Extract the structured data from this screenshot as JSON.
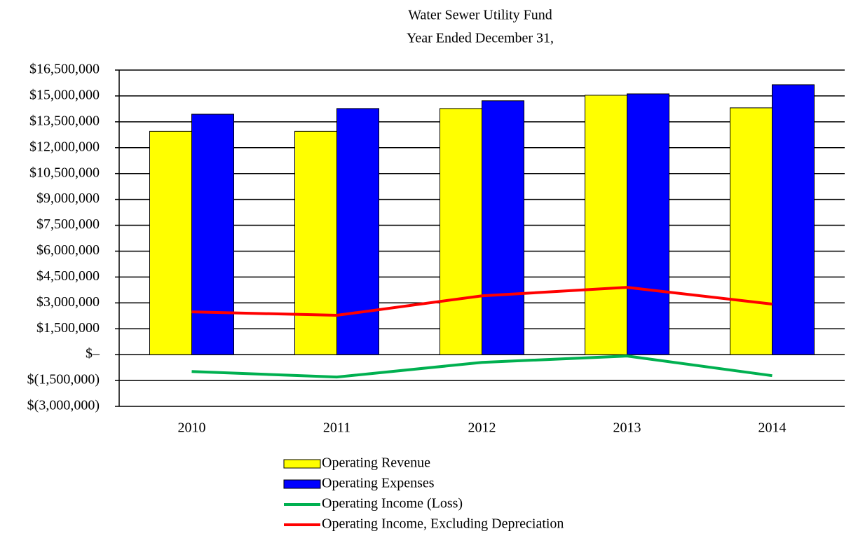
{
  "chart_data": {
    "type": "bar",
    "title": "Water Sewer Utility Fund",
    "subtitle": "Year Ended December 31,",
    "categories": [
      "2010",
      "2011",
      "2012",
      "2013",
      "2014"
    ],
    "series": [
      {
        "name": "Operating Revenue",
        "type": "bar",
        "color": "#ffff00",
        "values": [
          12950000,
          12950000,
          14270000,
          15040000,
          14310000
        ]
      },
      {
        "name": "Operating Expenses",
        "type": "bar",
        "color": "#0000ff",
        "values": [
          13940000,
          14270000,
          14720000,
          15120000,
          15650000
        ]
      },
      {
        "name": "Operating Income (Loss)",
        "type": "line",
        "color": "#00b050",
        "values": [
          -980000,
          -1300000,
          -450000,
          -80000,
          -1220000
        ]
      },
      {
        "name": "Operating Income, Excluding Depreciation",
        "type": "line",
        "color": "#ff0000",
        "values": [
          2480000,
          2280000,
          3410000,
          3900000,
          2930000
        ]
      }
    ],
    "ylim": [
      -3000000,
      16500000
    ],
    "yticks": [
      {
        "value": -3000000,
        "label": "$(3,000,000)"
      },
      {
        "value": -1500000,
        "label": "$(1,500,000)"
      },
      {
        "value": 0,
        "label": "$–"
      },
      {
        "value": 1500000,
        "label": "$1,500,000"
      },
      {
        "value": 3000000,
        "label": "$3,000,000"
      },
      {
        "value": 4500000,
        "label": "$4,500,000"
      },
      {
        "value": 6000000,
        "label": "$6,000,000"
      },
      {
        "value": 7500000,
        "label": "$7,500,000"
      },
      {
        "value": 9000000,
        "label": "$9,000,000"
      },
      {
        "value": 10500000,
        "label": "$10,500,000"
      },
      {
        "value": 12000000,
        "label": "$12,000,000"
      },
      {
        "value": 13500000,
        "label": "$13,500,000"
      },
      {
        "value": 15000000,
        "label": "$15,000,000"
      },
      {
        "value": 16500000,
        "label": "$16,500,000"
      }
    ],
    "grid": true,
    "legend": "bottom"
  }
}
